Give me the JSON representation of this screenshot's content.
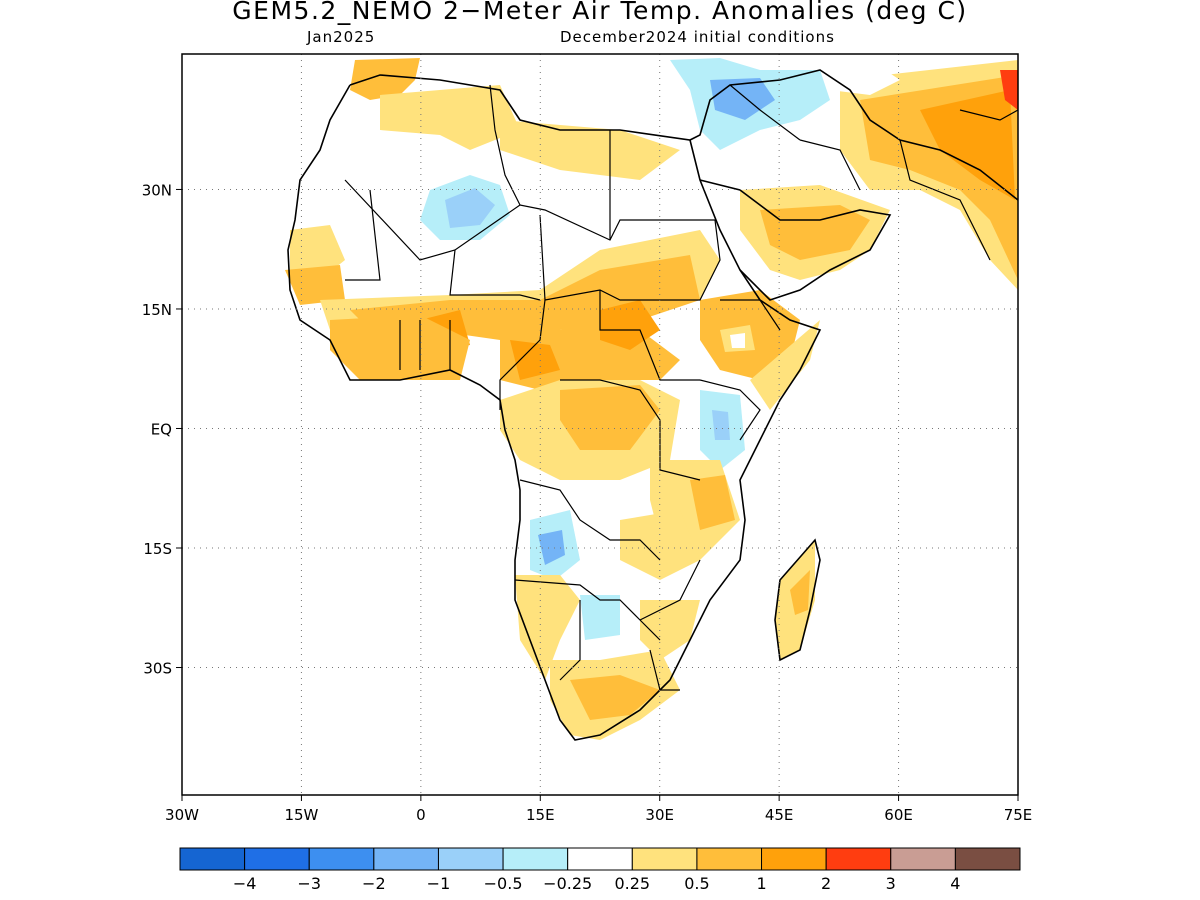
{
  "title": "GEM5.2_NEMO 2−Meter Air Temp. Anomalies (deg C)",
  "subtitle_left": "Jan2025",
  "subtitle_right": "December2024 initial conditions",
  "map": {
    "lon_range": [
      -30,
      75
    ],
    "lat_range": [
      -46,
      47
    ],
    "lon_ticks": [
      {
        "value": -30,
        "label": "30W"
      },
      {
        "value": -15,
        "label": "15W"
      },
      {
        "value": 0,
        "label": "0"
      },
      {
        "value": 15,
        "label": "15E"
      },
      {
        "value": 30,
        "label": "30E"
      },
      {
        "value": 45,
        "label": "45E"
      },
      {
        "value": 60,
        "label": "60E"
      },
      {
        "value": 75,
        "label": "75E"
      }
    ],
    "lat_ticks": [
      {
        "value": 30,
        "label": "30N"
      },
      {
        "value": 15,
        "label": "15N"
      },
      {
        "value": 0,
        "label": "EQ"
      },
      {
        "value": -15,
        "label": "15S"
      },
      {
        "value": -30,
        "label": "30S"
      }
    ],
    "grid": "dotted"
  },
  "colorbar": {
    "colors": [
      "#1565d2",
      "#1f6fe6",
      "#3d8ff0",
      "#74b4f6",
      "#9ad0f9",
      "#b6eef9",
      "#ffffff",
      "#ffe27d",
      "#ffbe3a",
      "#ffa10b",
      "#ff3d10",
      "#c99d94",
      "#7a4e42"
    ],
    "labels": [
      "−4",
      "−3",
      "−2",
      "−1",
      "−0.5",
      "−0.25",
      "0.25",
      "0.5",
      "1",
      "2",
      "3",
      "4"
    ]
  }
}
